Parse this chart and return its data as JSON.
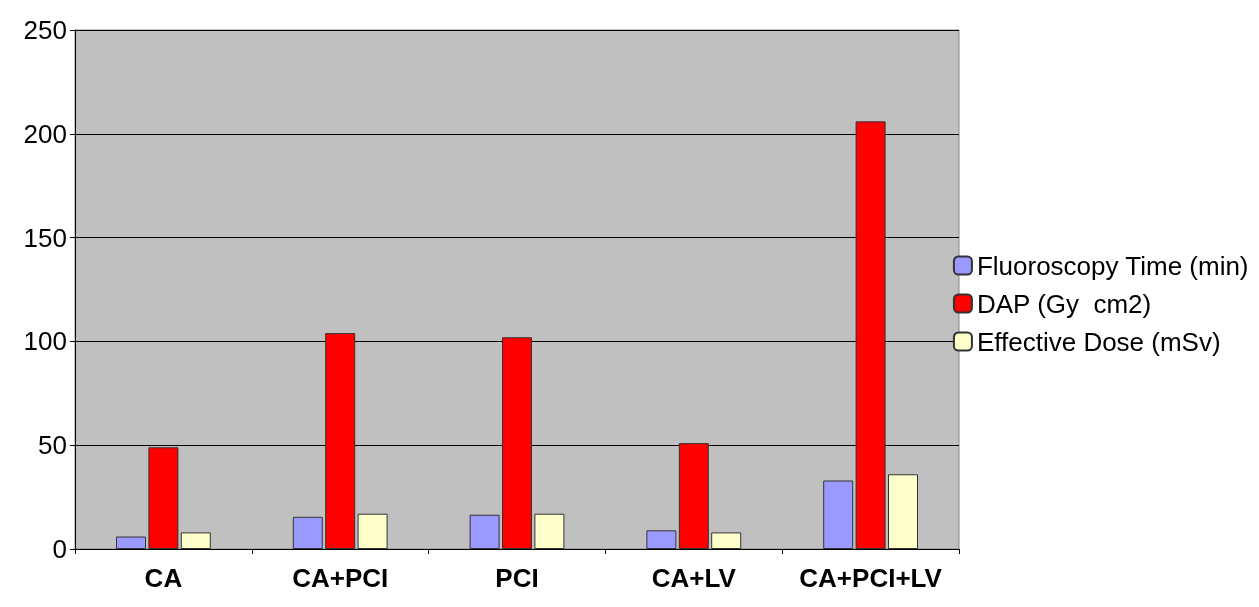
{
  "chart_data": {
    "type": "bar",
    "categories": [
      "CA",
      "CA+PCI",
      "PCI",
      "CA+LV",
      "CA+PCI+LV"
    ],
    "series": [
      {
        "name": "Fluoroscopy Time (min)",
        "color": "#9999ff",
        "values": [
          6,
          15.5,
          16.5,
          9,
          33
        ]
      },
      {
        "name": "DAP (Gy  cm2)",
        "color": "#ff0000",
        "values": [
          49,
          104,
          102,
          51,
          206
        ]
      },
      {
        "name": "Effective Dose (mSv)",
        "color": "#ffffcc",
        "values": [
          8,
          17,
          17,
          8,
          36
        ]
      }
    ],
    "ylim": [
      0,
      250
    ],
    "yticks": [
      0,
      50,
      100,
      150,
      200,
      250
    ],
    "grid": "y",
    "legend": "right"
  }
}
